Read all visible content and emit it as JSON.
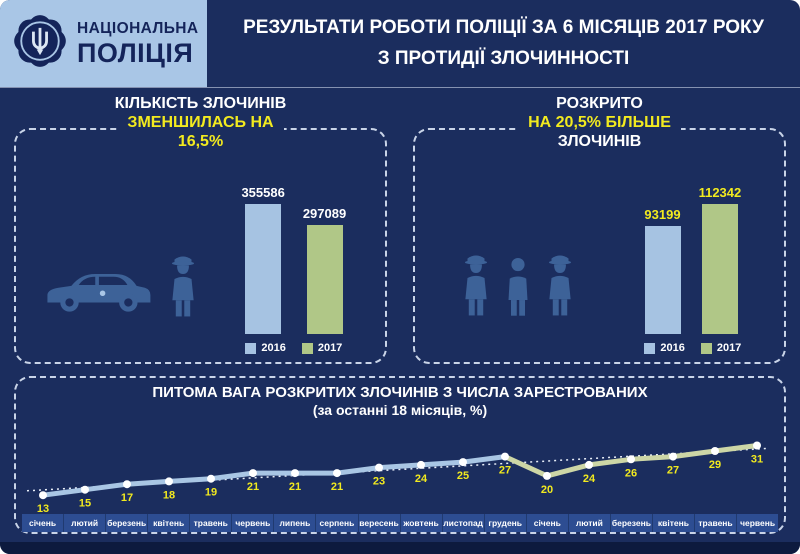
{
  "colors": {
    "background_navy": "#1b2d5e",
    "header_light_blue": "#a9c6e6",
    "accent_yellow": "#f2ea1f",
    "bar_blue_2016": "#a6c3e2",
    "bar_green_2017": "#b0c787",
    "icon_blue": "#3d6298",
    "months_strip_blue": "#2d4d92",
    "footer_dark": "#0d1a3e"
  },
  "header": {
    "brand_line1": "НАЦІОНАЛЬНА",
    "brand_line2": "ПОЛІЦІЯ",
    "title_line1": "РЕЗУЛЬТАТИ РОБОТИ ПОЛІЦІЇ ЗА 6 МІСЯЦІВ 2017 РОКУ",
    "title_line2": "З ПРОТИДІЇ ЗЛОЧИННОСТІ"
  },
  "panels": {
    "left": {
      "line1": "КІЛЬКІСТЬ ЗЛОЧИНІВ",
      "line2": "ЗМЕНШИЛАСЬ НА",
      "line3": "16,5%"
    },
    "right": {
      "line1": "РОЗКРИТО",
      "line2": "НА 20,5% БІЛЬШЕ",
      "line3": "ЗЛОЧИНІВ"
    }
  },
  "chart_data": [
    {
      "id": "registered-crimes",
      "type": "bar",
      "title": "КІЛЬКІСТЬ ЗЛОЧИНІВ ЗМЕНШИЛАСЬ НА 16,5%",
      "categories": [
        "2016",
        "2017"
      ],
      "values": [
        355586,
        297089
      ],
      "bar_colors": [
        "#a6c3e2",
        "#b0c787"
      ],
      "value_label_color": "#ffffff",
      "legend_position": "bottom"
    },
    {
      "id": "solved-crimes",
      "type": "bar",
      "title": "РОЗКРИТО НА 20,5% БІЛЬШЕ ЗЛОЧИНІВ",
      "categories": [
        "2016",
        "2017"
      ],
      "values": [
        93199,
        112342
      ],
      "bar_colors": [
        "#a6c3e2",
        "#b0c787"
      ],
      "value_label_color": "#f2ea1f",
      "legend_position": "bottom"
    },
    {
      "id": "solved-share",
      "type": "line",
      "title": "ПИТОМА ВАГА РОЗКРИТИХ ЗЛОЧИНІВ З ЧИСЛА ЗАРЕСТРОВАНИХ",
      "subtitle": "(за останні 18 місяців, %)",
      "categories": [
        "січень",
        "лютий",
        "березень",
        "квітень",
        "травень",
        "червень",
        "липень",
        "серпень",
        "вересень",
        "жовтень",
        "листопад",
        "грудень",
        "січень",
        "лютий",
        "березень",
        "квітень",
        "травень",
        "червень"
      ],
      "values": [
        13,
        15,
        17,
        18,
        19,
        21,
        21,
        21,
        23,
        24,
        25,
        27,
        20,
        24,
        26,
        27,
        29,
        31
      ],
      "ylim": [
        12,
        33
      ],
      "value_label_color": "#f2ea1f",
      "segment_colors": [
        "#a9c6e4",
        "#cdd6a6"
      ],
      "trendline": true,
      "grid": false
    }
  ]
}
